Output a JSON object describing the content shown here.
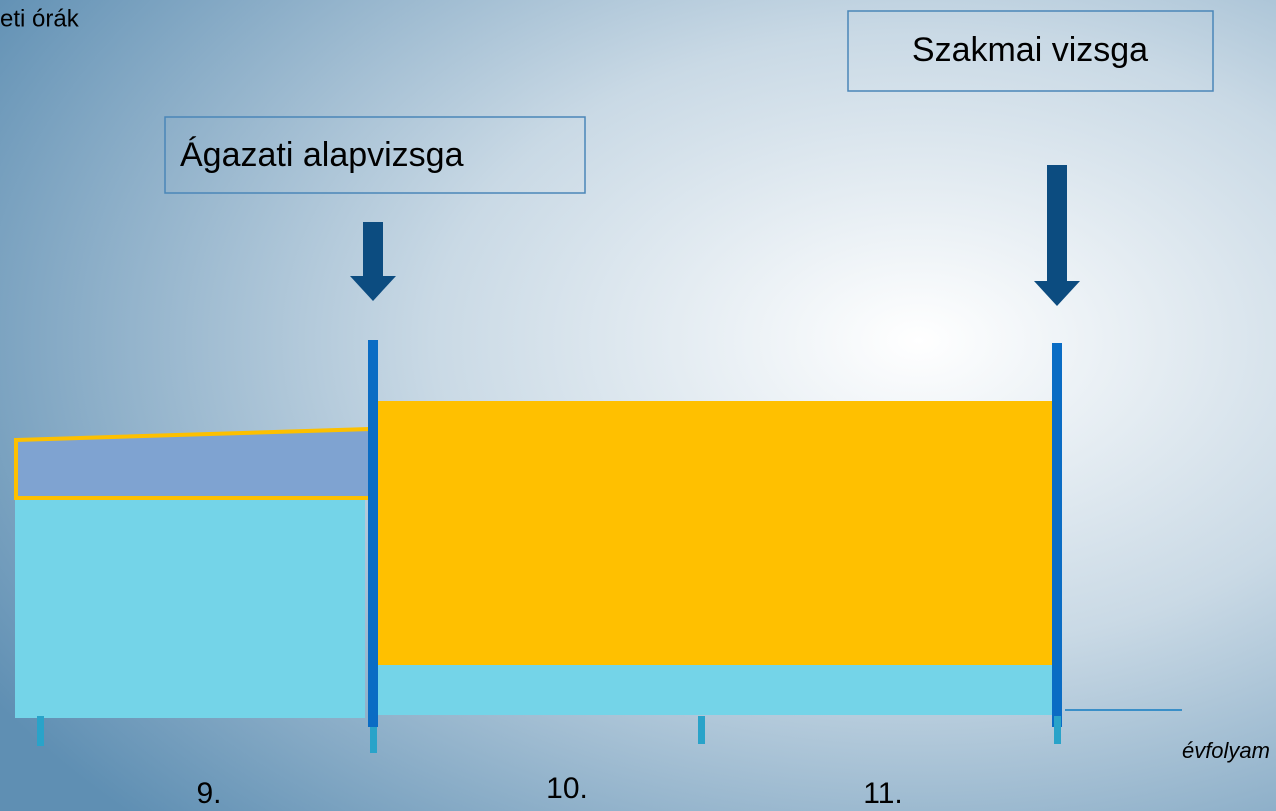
{
  "axis_label_top": "eti órák",
  "boxes": [
    {
      "label": "Szakmai vizsga"
    },
    {
      "label": "Ágazati alapvizsga"
    }
  ],
  "grades": [
    "9.",
    "10.",
    "11."
  ],
  "axis_label_x": "évfolyam"
}
